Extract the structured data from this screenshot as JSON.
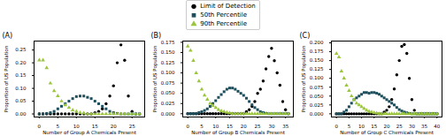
{
  "chart_data": [
    {
      "type": "scatter",
      "title": "(A)",
      "x_label": "Number of Group A Chemicals Present",
      "y_label": "Proportion of US Population",
      "legend": "upper center",
      "x": [
        0,
        1,
        2,
        3,
        4,
        5,
        6,
        7,
        8,
        9,
        10,
        11,
        12,
        13,
        14,
        15,
        16,
        17,
        18,
        19,
        20,
        21,
        22,
        23,
        24,
        25,
        26,
        27
      ],
      "series": [
        {
          "name": "Limit of Detection",
          "color": "#000000",
          "marker": "circle",
          "values": [
            0,
            0,
            0,
            0,
            0,
            0,
            0,
            0,
            0,
            0,
            0,
            0,
            0,
            0,
            0,
            0.005,
            0.01,
            0.02,
            0.04,
            0.07,
            0.11,
            0.2,
            0.27,
            0.21,
            0.07,
            0.01,
            0,
            0
          ]
        },
        {
          "name": "50th Percentile",
          "color": "#1d4f5c",
          "marker": "square",
          "values": [
            0,
            0,
            0.002,
            0.005,
            0.01,
            0.02,
            0.03,
            0.04,
            0.05,
            0.06,
            0.068,
            0.07,
            0.07,
            0.065,
            0.06,
            0.05,
            0.04,
            0.03,
            0.02,
            0.01,
            0.005,
            0.002,
            0,
            0,
            0,
            0,
            0,
            0
          ]
        },
        {
          "name": "90th Percentile",
          "color": "#9bc53d",
          "marker": "triangle",
          "values": [
            0.21,
            0.21,
            0.18,
            0.12,
            0.09,
            0.07,
            0.05,
            0.035,
            0.025,
            0.015,
            0.01,
            0.005,
            0.003,
            0,
            0,
            0,
            0,
            0,
            0,
            0,
            0,
            0,
            0,
            0,
            0,
            0,
            0,
            0
          ]
        }
      ],
      "xlim": [
        -1.4,
        28.4
      ],
      "ylim": [
        -0.012,
        0.285
      ],
      "xticks": [
        0,
        5,
        10,
        15,
        20,
        25
      ],
      "yticks": [
        {
          "value": 0,
          "label": "0.00"
        },
        {
          "value": 0.05,
          "label": "0.05"
        },
        {
          "value": 0.1,
          "label": "0.10"
        },
        {
          "value": 0.15,
          "label": "0.15"
        },
        {
          "value": 0.2,
          "label": "0.20"
        },
        {
          "value": 0.25,
          "label": "0.25"
        }
      ]
    },
    {
      "type": "scatter",
      "title": "(B)",
      "x_label": "Number of Group B Chemicals Present",
      "y_label": "Proportion of US Population",
      "x": [
        0,
        1,
        2,
        3,
        4,
        5,
        6,
        7,
        8,
        9,
        10,
        11,
        12,
        13,
        14,
        15,
        16,
        17,
        18,
        19,
        20,
        21,
        22,
        23,
        24,
        25,
        26,
        27,
        28,
        29,
        30,
        31,
        32,
        33,
        34,
        35,
        36
      ],
      "series": [
        {
          "name": "Limit of Detection",
          "color": "#000000",
          "marker": "circle",
          "values": [
            0,
            0,
            0,
            0,
            0,
            0,
            0,
            0,
            0,
            0,
            0,
            0,
            0,
            0,
            0,
            0,
            0,
            0,
            0,
            0,
            0,
            0.005,
            0.01,
            0.018,
            0.03,
            0.05,
            0.06,
            0.08,
            0.11,
            0.14,
            0.16,
            0.13,
            0.1,
            0.07,
            0.03,
            0.01,
            0
          ]
        },
        {
          "name": "50th Percentile",
          "color": "#1d4f5c",
          "marker": "square",
          "values": [
            0,
            0,
            0,
            0,
            0.003,
            0.005,
            0.008,
            0.012,
            0.018,
            0.025,
            0.032,
            0.04,
            0.047,
            0.054,
            0.06,
            0.063,
            0.063,
            0.06,
            0.055,
            0.05,
            0.045,
            0.038,
            0.03,
            0.022,
            0.015,
            0.01,
            0.005,
            0.003,
            0.001,
            0,
            0,
            0,
            0,
            0,
            0,
            0,
            0
          ]
        },
        {
          "name": "90th Percentile",
          "color": "#9bc53d",
          "marker": "triangle",
          "values": [
            0.165,
            0.155,
            0.13,
            0.1,
            0.08,
            0.06,
            0.045,
            0.035,
            0.025,
            0.02,
            0.015,
            0.01,
            0.007,
            0.005,
            0.003,
            0.002,
            0,
            0,
            0,
            0,
            0,
            0,
            0,
            0,
            0,
            0,
            0,
            0,
            0,
            0,
            0,
            0,
            0,
            0,
            0,
            0,
            0
          ]
        }
      ],
      "xlim": [
        -1.8,
        37.8
      ],
      "ylim": [
        -0.008,
        0.178
      ],
      "xticks": [
        0,
        5,
        10,
        15,
        20,
        25,
        30,
        35
      ],
      "yticks": [
        {
          "value": 0,
          "label": "0.000"
        },
        {
          "value": 0.025,
          "label": "0.025"
        },
        {
          "value": 0.05,
          "label": "0.050"
        },
        {
          "value": 0.075,
          "label": "0.075"
        },
        {
          "value": 0.1,
          "label": "0.100"
        },
        {
          "value": 0.125,
          "label": "0.125"
        },
        {
          "value": 0.15,
          "label": "0.150"
        },
        {
          "value": 0.175,
          "label": "0.175"
        }
      ]
    },
    {
      "type": "scatter",
      "title": "(C)",
      "x_label": "Number of Group C Chemicals Present",
      "y_label": "Proportion of US Population",
      "x": [
        0,
        1,
        2,
        3,
        4,
        5,
        6,
        7,
        8,
        9,
        10,
        11,
        12,
        13,
        14,
        15,
        16,
        17,
        18,
        19,
        20,
        21,
        22,
        23,
        24,
        25,
        26,
        27,
        28,
        29,
        30,
        31,
        32,
        33,
        34,
        35,
        36,
        37,
        38,
        39,
        40
      ],
      "series": [
        {
          "name": "Limit of Detection",
          "color": "#000000",
          "marker": "circle",
          "values": [
            0,
            0,
            0,
            0,
            0,
            0,
            0,
            0,
            0,
            0,
            0,
            0,
            0,
            0,
            0,
            0,
            0,
            0,
            0,
            0.005,
            0.01,
            0.02,
            0.04,
            0.07,
            0.11,
            0.15,
            0.19,
            0.195,
            0.17,
            0.1,
            0.04,
            0.01,
            0,
            0,
            0,
            0,
            0,
            0,
            0,
            0,
            0
          ]
        },
        {
          "name": "50th Percentile",
          "color": "#1d4f5c",
          "marker": "square",
          "values": [
            0,
            0,
            0,
            0.005,
            0.01,
            0.02,
            0.03,
            0.04,
            0.045,
            0.05,
            0.055,
            0.06,
            0.06,
            0.058,
            0.06,
            0.06,
            0.058,
            0.055,
            0.05,
            0.045,
            0.04,
            0.035,
            0.03,
            0.025,
            0.018,
            0.012,
            0.008,
            0.005,
            0.003,
            0.001,
            0,
            0,
            0,
            0,
            0,
            0,
            0,
            0,
            0,
            0,
            0
          ]
        },
        {
          "name": "90th Percentile",
          "color": "#9bc53d",
          "marker": "triangle",
          "values": [
            0.17,
            0.16,
            0.12,
            0.1,
            0.08,
            0.065,
            0.05,
            0.04,
            0.03,
            0.025,
            0.02,
            0.015,
            0.01,
            0.007,
            0.005,
            0.003,
            0.002,
            0,
            0,
            0,
            0,
            0,
            0,
            0,
            0,
            0,
            0,
            0,
            0,
            0,
            0,
            0,
            0,
            0,
            0,
            0,
            0,
            0,
            0,
            0,
            0
          ]
        }
      ],
      "xlim": [
        -2,
        42
      ],
      "ylim": [
        -0.009,
        0.205
      ],
      "xticks": [
        0,
        5,
        10,
        15,
        20,
        25,
        30,
        35,
        40
      ],
      "yticks": [
        {
          "value": 0,
          "label": "0.000"
        },
        {
          "value": 0.025,
          "label": "0.025"
        },
        {
          "value": 0.05,
          "label": "0.050"
        },
        {
          "value": 0.075,
          "label": "0.075"
        },
        {
          "value": 0.1,
          "label": "0.100"
        },
        {
          "value": 0.125,
          "label": "0.125"
        },
        {
          "value": 0.15,
          "label": "0.150"
        },
        {
          "value": 0.175,
          "label": "0.175"
        },
        {
          "value": 0.2,
          "label": "0.200"
        }
      ]
    }
  ]
}
